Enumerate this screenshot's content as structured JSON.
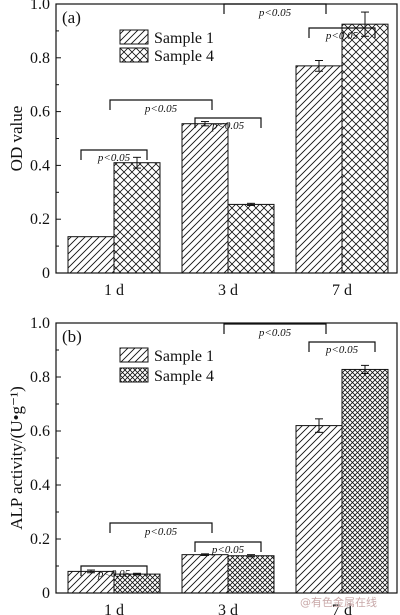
{
  "watermark": "@有色金属在线",
  "chart_data": [
    {
      "type": "bar",
      "panel_label": "(a)",
      "ylabel": "OD value",
      "xlabel": "",
      "categories": [
        "1 d",
        "3 d",
        "7 d"
      ],
      "ylim": [
        0,
        1.0
      ],
      "yticks": [
        "0",
        "0.2",
        "0.4",
        "0.6",
        "0.8",
        "1.0"
      ],
      "legend_position": "top-left",
      "series": [
        {
          "name": "Sample 1",
          "pattern": "diagonal-lines",
          "values": [
            0.135,
            0.555,
            0.77
          ],
          "errors": [
            0.0,
            0.008,
            0.02
          ]
        },
        {
          "name": "Sample 4",
          "pattern": "crosshatch",
          "values": [
            0.41,
            0.255,
            0.925
          ],
          "errors": [
            0.02,
            0.004,
            0.045
          ]
        }
      ],
      "annotations": [
        {
          "text": "p<0.05",
          "type": "within",
          "category": 0
        },
        {
          "text": "p<0.05",
          "type": "within",
          "category": 1
        },
        {
          "text": "p<0.05",
          "type": "within",
          "category": 2
        },
        {
          "text": "p<0.05",
          "type": "between",
          "from": 0,
          "to": 1
        },
        {
          "text": "p<0.05",
          "type": "between",
          "from": 1,
          "to": 2
        }
      ]
    },
    {
      "type": "bar",
      "panel_label": "(b)",
      "ylabel": "ALP activity/(U•g⁻¹)",
      "xlabel": "",
      "categories": [
        "1 d",
        "3 d",
        "7 d"
      ],
      "ylim": [
        0,
        1.0
      ],
      "yticks": [
        "0",
        "0.2",
        "0.4",
        "0.6",
        "0.8",
        "1.0"
      ],
      "legend_position": "top-left",
      "series": [
        {
          "name": "Sample 1",
          "pattern": "diagonal-lines",
          "values": [
            0.08,
            0.142,
            0.62
          ],
          "errors": [
            0.005,
            0.003,
            0.025
          ]
        },
        {
          "name": "Sample 4",
          "pattern": "dense-crosshatch",
          "values": [
            0.07,
            0.138,
            0.828
          ],
          "errors": [
            0.003,
            0.004,
            0.015
          ]
        }
      ],
      "annotations": [
        {
          "text": "p<0.05",
          "type": "within",
          "category": 0
        },
        {
          "text": "p<0.05",
          "type": "within",
          "category": 1
        },
        {
          "text": "p<0.05",
          "type": "within",
          "category": 2
        },
        {
          "text": "p<0.05",
          "type": "between",
          "from": 0,
          "to": 1
        },
        {
          "text": "p<0.05",
          "type": "between",
          "from": 1,
          "to": 2
        }
      ]
    }
  ]
}
